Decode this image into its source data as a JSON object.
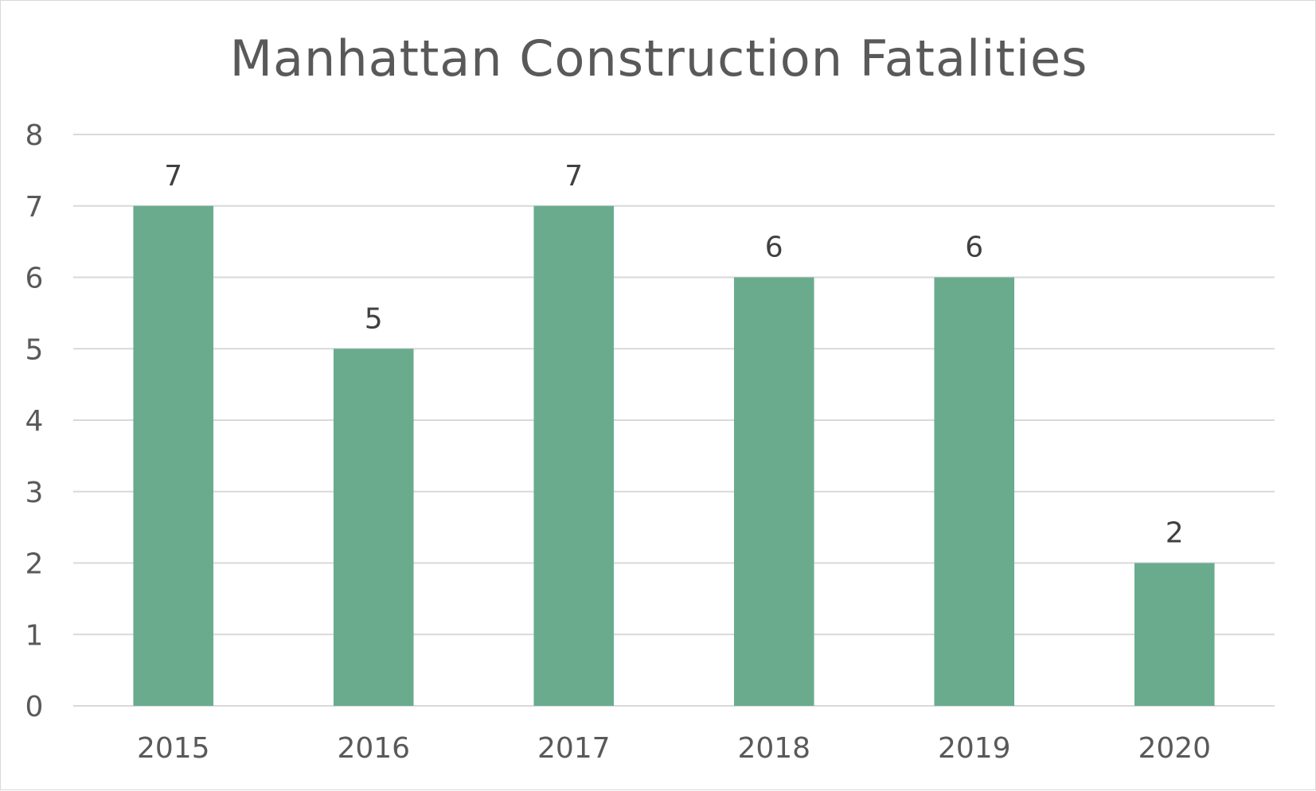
{
  "chart_data": {
    "type": "bar",
    "title": "Manhattan Construction Fatalities",
    "xlabel": "",
    "ylabel": "",
    "categories": [
      "2015",
      "2016",
      "2017",
      "2018",
      "2019",
      "2020"
    ],
    "values": [
      7,
      5,
      7,
      6,
      6,
      2
    ],
    "ylim": [
      0,
      8
    ],
    "yticks": [
      "0",
      "1",
      "2",
      "3",
      "4",
      "5",
      "6",
      "7",
      "8"
    ],
    "grid": true,
    "legend": "none",
    "data_labels": true,
    "bar_color": "#6aab8e",
    "gridline_color": "#d9d9d9"
  }
}
